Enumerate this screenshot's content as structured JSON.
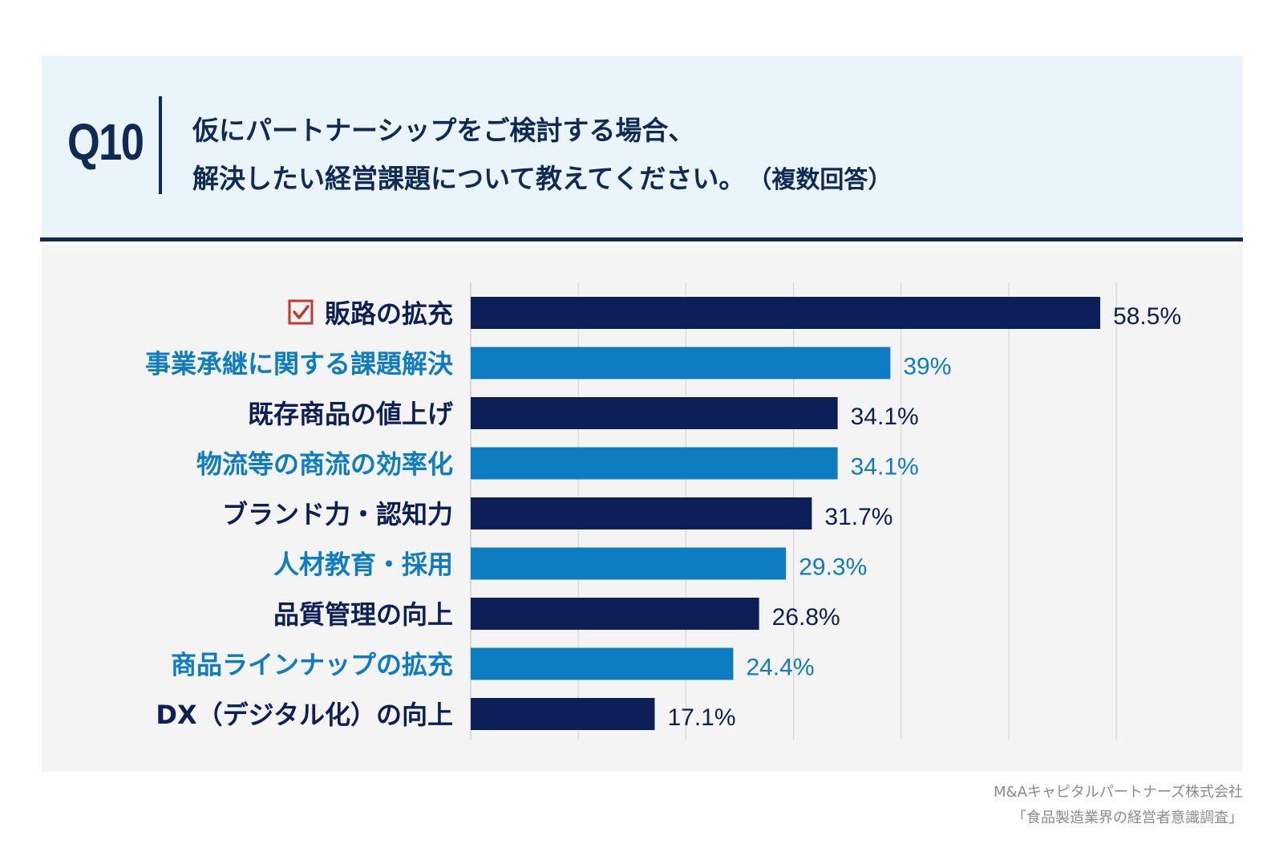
{
  "header": {
    "question_no": "Q10",
    "line1": "仮にパートナーシップをご検討する場合、",
    "line2": "解決したい経営課題について教えてください。",
    "note": "（複数回答）"
  },
  "chart_data": {
    "type": "bar",
    "orientation": "horizontal",
    "xlim": [
      0,
      60
    ],
    "grid": true,
    "value_suffix": "%",
    "categories": [
      "販路の拡充",
      "事業承継に関する課題解決",
      "既存商品の値上げ",
      "物流等の商流の効率化",
      "ブランド力・認知力",
      "人材教育・採用",
      "品質管理の向上",
      "商品ラインナップの拡充",
      "DX（デジタル化）の向上"
    ],
    "values": [
      58.5,
      39,
      34.1,
      34.1,
      31.7,
      29.3,
      26.8,
      24.4,
      17.1
    ],
    "value_labels": [
      "58.5%",
      "39%",
      "34.1%",
      "34.1%",
      "31.7%",
      "29.3%",
      "26.8%",
      "24.4%",
      "17.1%"
    ],
    "highlighted_category": "販路の拡充",
    "highlight_icon": "checkbox-checked-icon"
  },
  "colors": {
    "navy": "#0d1f57",
    "blue": "#0e7cc0",
    "header_bg": "#eaf4fb",
    "check": "#c0392b",
    "grid": "#d2d2d2"
  },
  "footer": {
    "company": "M&Aキャピタルパートナーズ株式会社",
    "survey": "「食品製造業界の経営者意識調査」"
  }
}
